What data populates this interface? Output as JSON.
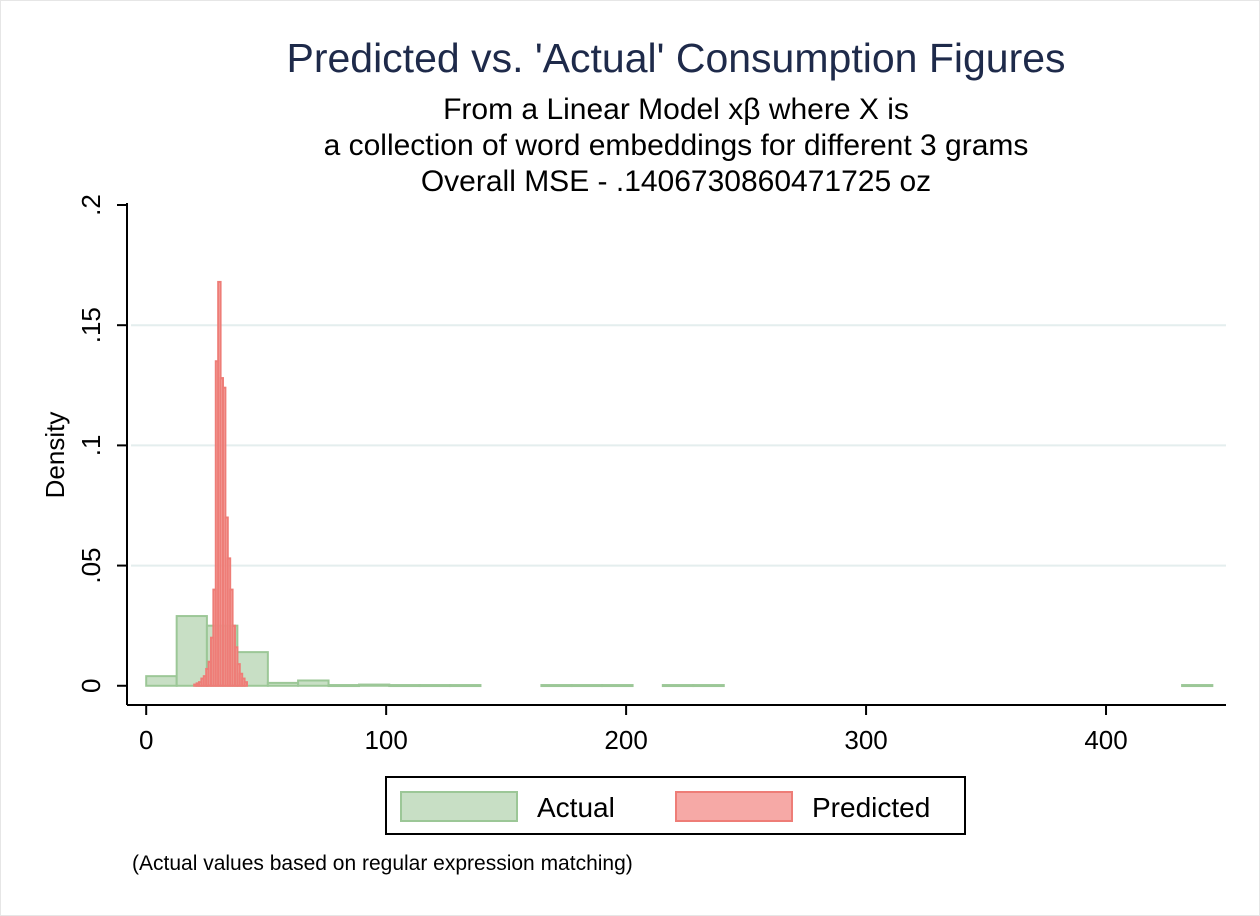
{
  "chart_data": {
    "type": "histogram",
    "title": "Predicted vs. 'Actual' Consumption Figures",
    "subtitle_lines": [
      "From a Linear Model xβ where X is",
      "a collection of word embeddings for different 3 grams",
      "Overall MSE - .1406730860471725 oz"
    ],
    "ylabel": "Density",
    "xlabel": "",
    "note": "(Actual values based on regular expression matching)",
    "xlim": [
      -8,
      450
    ],
    "ylim": [
      -0.008,
      0.2
    ],
    "x_ticks": [
      {
        "value": 0,
        "label": "0"
      },
      {
        "value": 100,
        "label": "100"
      },
      {
        "value": 200,
        "label": "200"
      },
      {
        "value": 300,
        "label": "300"
      },
      {
        "value": 400,
        "label": "400"
      }
    ],
    "y_ticks": [
      {
        "value": 0,
        "label": "0"
      },
      {
        "value": 0.05,
        "label": ".05"
      },
      {
        "value": 0.1,
        "label": ".1"
      },
      {
        "value": 0.15,
        "label": ".15"
      },
      {
        "value": 0.2,
        "label": ".2"
      }
    ],
    "grid": true,
    "legend_position": "bottom",
    "series": [
      {
        "name": "Actual",
        "fill": "#c8dfc5",
        "stroke": "#9cc797",
        "bins": [
          {
            "x0": 0,
            "x1": 12.7,
            "density": 0.004
          },
          {
            "x0": 12.7,
            "x1": 25.3,
            "density": 0.029
          },
          {
            "x0": 25.3,
            "x1": 38,
            "density": 0.025
          },
          {
            "x0": 38,
            "x1": 50.7,
            "density": 0.014
          },
          {
            "x0": 50.7,
            "x1": 63.3,
            "density": 0.0012
          },
          {
            "x0": 63.3,
            "x1": 76,
            "density": 0.0022
          },
          {
            "x0": 76,
            "x1": 88.7,
            "density": 0.0003
          },
          {
            "x0": 88.7,
            "x1": 101.3,
            "density": 0.0005
          },
          {
            "x0": 101.3,
            "x1": 114,
            "density": 0.0003
          },
          {
            "x0": 114,
            "x1": 126.7,
            "density": 0.0003
          },
          {
            "x0": 126.7,
            "x1": 139.3,
            "density": 0.0003
          },
          {
            "x0": 164.7,
            "x1": 177.3,
            "density": 0.0003
          },
          {
            "x0": 177.3,
            "x1": 190,
            "density": 0.0003
          },
          {
            "x0": 190,
            "x1": 202.7,
            "density": 0.0003
          },
          {
            "x0": 215.3,
            "x1": 228,
            "density": 0.0003
          },
          {
            "x0": 228,
            "x1": 240.7,
            "density": 0.0003
          },
          {
            "x0": 431.7,
            "x1": 444.3,
            "density": 0.0003
          }
        ]
      },
      {
        "name": "Predicted",
        "fill": "#f6a9a6",
        "stroke": "#ee7d77",
        "bins": [
          {
            "x0": 20,
            "x1": 21,
            "density": 0.0005
          },
          {
            "x0": 21,
            "x1": 22,
            "density": 0.001
          },
          {
            "x0": 22,
            "x1": 23,
            "density": 0.0015
          },
          {
            "x0": 23,
            "x1": 24,
            "density": 0.003
          },
          {
            "x0": 24,
            "x1": 25,
            "density": 0.004
          },
          {
            "x0": 25,
            "x1": 26,
            "density": 0.007
          },
          {
            "x0": 26,
            "x1": 27,
            "density": 0.01
          },
          {
            "x0": 27,
            "x1": 28,
            "density": 0.02
          },
          {
            "x0": 28,
            "x1": 29,
            "density": 0.04
          },
          {
            "x0": 29,
            "x1": 30,
            "density": 0.135
          },
          {
            "x0": 30,
            "x1": 31,
            "density": 0.168
          },
          {
            "x0": 31,
            "x1": 32,
            "density": 0.128
          },
          {
            "x0": 32,
            "x1": 33,
            "density": 0.124
          },
          {
            "x0": 33,
            "x1": 34,
            "density": 0.07
          },
          {
            "x0": 34,
            "x1": 35,
            "density": 0.053
          },
          {
            "x0": 35,
            "x1": 36,
            "density": 0.04
          },
          {
            "x0": 36,
            "x1": 37,
            "density": 0.025
          },
          {
            "x0": 37,
            "x1": 38,
            "density": 0.016
          },
          {
            "x0": 38,
            "x1": 39,
            "density": 0.009
          },
          {
            "x0": 39,
            "x1": 40,
            "density": 0.005
          },
          {
            "x0": 40,
            "x1": 41,
            "density": 0.003
          },
          {
            "x0": 41,
            "x1": 42,
            "density": 0.0015
          }
        ]
      }
    ]
  }
}
